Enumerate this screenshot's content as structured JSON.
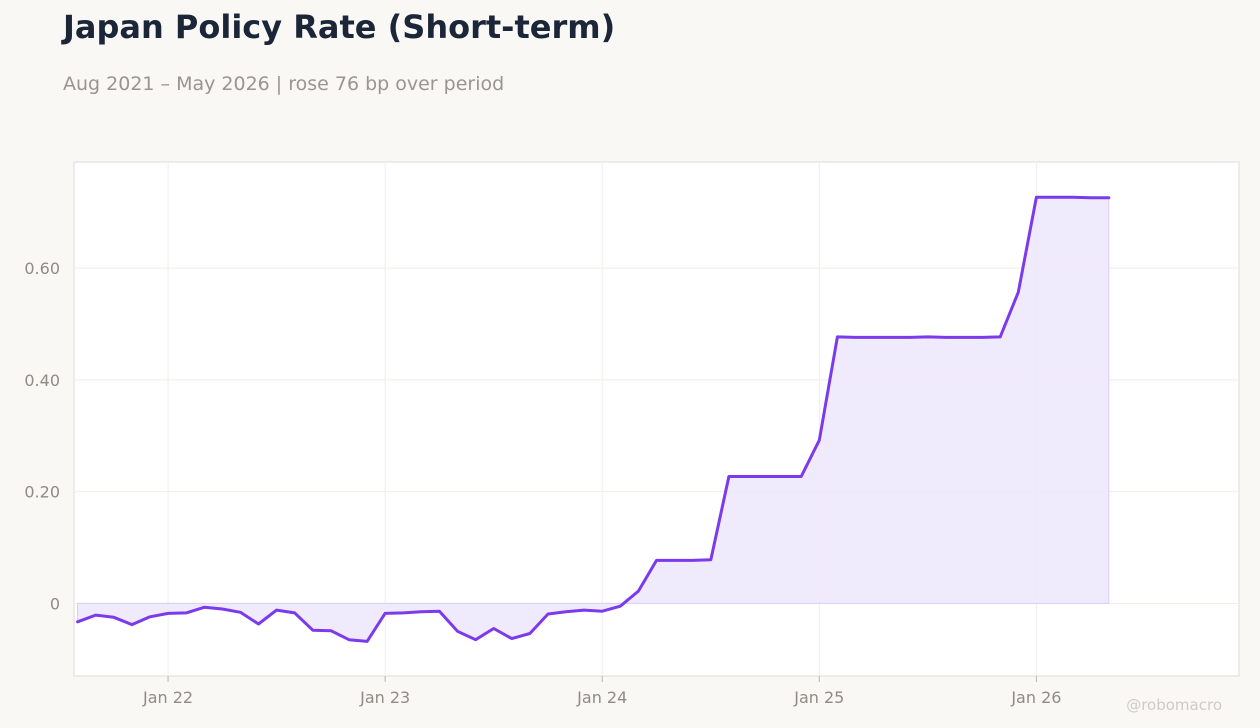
{
  "title": "Japan Policy Rate (Short-term)",
  "subtitle": "Aug 2021 – May 2026 | rose 76 bp over period",
  "watermark": "@robomacro",
  "colors": {
    "line": "#7c3aed",
    "fill": "#ede7fb",
    "background": "#f9f8f5",
    "plot_bg": "#ffffff"
  },
  "chart_data": {
    "type": "area",
    "x": [
      "2021-08",
      "2021-09",
      "2021-10",
      "2021-11",
      "2021-12",
      "2022-01",
      "2022-02",
      "2022-03",
      "2022-04",
      "2022-05",
      "2022-06",
      "2022-07",
      "2022-08",
      "2022-09",
      "2022-10",
      "2022-11",
      "2022-12",
      "2023-01",
      "2023-02",
      "2023-03",
      "2023-04",
      "2023-05",
      "2023-06",
      "2023-07",
      "2023-08",
      "2023-09",
      "2023-10",
      "2023-11",
      "2023-12",
      "2024-01",
      "2024-02",
      "2024-03",
      "2024-04",
      "2024-05",
      "2024-06",
      "2024-07",
      "2024-08",
      "2024-09",
      "2024-10",
      "2024-11",
      "2024-12",
      "2025-01",
      "2025-02",
      "2025-03",
      "2025-04",
      "2025-05",
      "2025-06",
      "2025-07",
      "2025-08",
      "2025-09",
      "2025-10",
      "2025-11",
      "2025-12",
      "2026-01",
      "2026-02",
      "2026-03",
      "2026-04",
      "2026-05"
    ],
    "series": [
      {
        "values": [
          -0.033,
          -0.021,
          -0.025,
          -0.038,
          -0.024,
          -0.018,
          -0.017,
          -0.007,
          -0.01,
          -0.016,
          -0.037,
          -0.012,
          -0.017,
          -0.048,
          -0.049,
          -0.065,
          -0.068,
          -0.018,
          -0.017,
          -0.015,
          -0.014,
          -0.05,
          -0.065,
          -0.045,
          -0.063,
          -0.054,
          -0.019,
          -0.015,
          -0.012,
          -0.014,
          -0.005,
          0.022,
          0.077,
          0.077,
          0.077,
          0.078,
          0.227,
          0.227,
          0.227,
          0.227,
          0.227,
          0.292,
          0.477,
          0.476,
          0.476,
          0.476,
          0.476,
          0.477,
          0.476,
          0.476,
          0.476,
          0.477,
          0.557,
          0.727,
          0.727,
          0.727,
          0.726,
          0.726
        ]
      }
    ],
    "x_ticks": [
      "Jan 22",
      "Jan 23",
      "Jan 24",
      "Jan 25",
      "Jan 26"
    ],
    "x_tick_dates": [
      "2022-01",
      "2023-01",
      "2024-01",
      "2025-01",
      "2026-01"
    ],
    "y_ticks": [
      "0",
      "0.20",
      "0.40",
      "0.60"
    ],
    "y_tick_values": [
      0,
      0.2,
      0.4,
      0.6
    ],
    "ylim": [
      -0.13,
      0.79
    ],
    "grid": true,
    "legend": "none"
  }
}
